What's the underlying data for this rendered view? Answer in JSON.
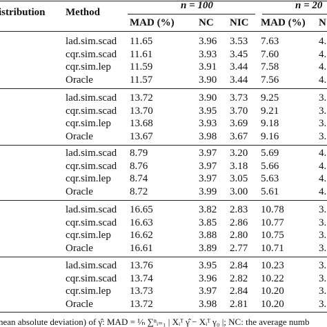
{
  "table": {
    "header": {
      "distribution": "istribution",
      "method": "Method",
      "groups": [
        "n = 100",
        "n = 20"
      ],
      "columns": [
        "MAD (%)",
        "NC",
        "NIC",
        "MAD (%)",
        "N"
      ]
    },
    "groups": [
      [
        [
          "lad.sim.scad",
          "11.65",
          "3.96",
          "3.53",
          "7.63",
          "4."
        ],
        [
          "cqr.sim.scad",
          "11.61",
          "3.93",
          "3.45",
          "7.60",
          "4."
        ],
        [
          "cqr.sim.lep",
          "11.59",
          "3.91",
          "3.44",
          "7.58",
          "4."
        ],
        [
          "Oracle",
          "11.57",
          "3.90",
          "3.44",
          "7.56",
          "4."
        ]
      ],
      [
        [
          "lad.sim.scad",
          "13.72",
          "3.90",
          "3.73",
          "9.25",
          "3."
        ],
        [
          "cqr.sim.scad",
          "13.70",
          "3.95",
          "3.70",
          "9.21",
          "3."
        ],
        [
          "cqr.sim.lep",
          "13.68",
          "3.93",
          "3.69",
          "9.18",
          "3."
        ],
        [
          "Oracle",
          "13.67",
          "3.98",
          "3.67",
          "9.16",
          "3."
        ]
      ],
      [
        [
          "lad.sim.scad",
          "8.79",
          "3.97",
          "3.20",
          "5.69",
          "4."
        ],
        [
          "cqr.sim.scad",
          "8.76",
          "3.97",
          "3.18",
          "5.66",
          "4."
        ],
        [
          "cqr.sim.lep",
          "8.74",
          "3.97",
          "3.05",
          "5.63",
          "4."
        ],
        [
          "Oracle",
          "8.72",
          "3.99",
          "3.00",
          "5.61",
          "4."
        ]
      ],
      [
        [
          "lad.sim.scad",
          "16.65",
          "3.82",
          "2.83",
          "10.78",
          "3."
        ],
        [
          "cqr.sim.scad",
          "16.63",
          "3.85",
          "2.86",
          "10.77",
          "3."
        ],
        [
          "cqr.sim.lep",
          "16.62",
          "3.88",
          "2.80",
          "10.75",
          "3."
        ],
        [
          "Oracle",
          "16.61",
          "3.89",
          "2.77",
          "10.71",
          "3."
        ]
      ],
      [
        [
          "lad.sim.scad",
          "13.76",
          "3.95",
          "2.84",
          "10.23",
          "3."
        ],
        [
          "cqr.sim.scad",
          "13.74",
          "3.96",
          "2.82",
          "10.22",
          "3."
        ],
        [
          "cqr.sim.lep",
          "13.73",
          "3.97",
          "2.84",
          "10.20",
          "3."
        ],
        [
          "Oracle",
          "13.72",
          "3.98",
          "2.81",
          "10.20",
          "3."
        ]
      ]
    ]
  },
  "footnote": "nean absolute deviation) of γ̂: MAD = ¹⁄ₙ ∑ⁿᵢ₌₁ | Xᵢᵀ γ̂ − Xᵢᵀ γ₀ |; NC: the average numb"
}
